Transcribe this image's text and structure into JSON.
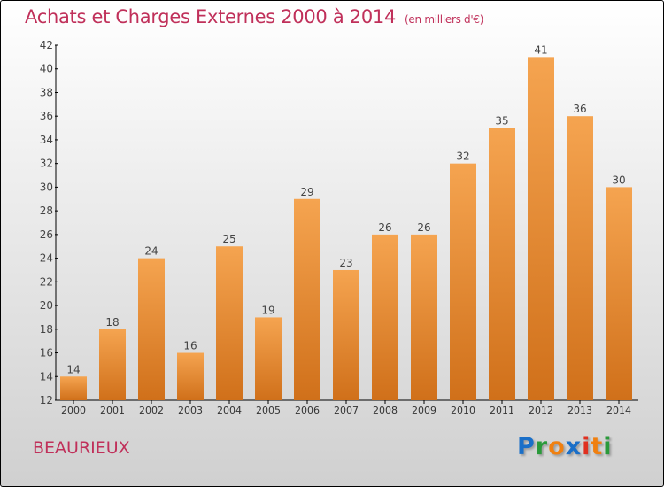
{
  "chart_data": {
    "type": "bar",
    "title": "Achats et Charges Externes 2000 à 2014",
    "subtitle": "(en milliers d'€)",
    "categories": [
      "2000",
      "2001",
      "2002",
      "2003",
      "2004",
      "2005",
      "2006",
      "2007",
      "2008",
      "2009",
      "2010",
      "2011",
      "2012",
      "2013",
      "2014"
    ],
    "values": [
      14,
      18,
      24,
      16,
      25,
      19,
      29,
      23,
      26,
      26,
      32,
      35,
      41,
      36,
      30
    ],
    "ylim": [
      12,
      42
    ],
    "yticks": [
      12,
      14,
      16,
      18,
      20,
      22,
      24,
      26,
      28,
      30,
      32,
      34,
      36,
      38,
      40,
      42
    ],
    "xlabel": "",
    "ylabel": "",
    "grid": false
  },
  "footer": {
    "city": "BEAURIEUX",
    "logo": [
      "P",
      "r",
      "o",
      "x",
      "i",
      "t",
      "i"
    ]
  },
  "colors": {
    "bar_top": "#f5a450",
    "bar_bottom": "#d0701a",
    "title": "#c0305a",
    "logo": [
      "#1a6fc8",
      "#2a9a3a",
      "#f08010",
      "#1a6fc8",
      "#e03020",
      "#f08010",
      "#2a9a3a"
    ]
  }
}
